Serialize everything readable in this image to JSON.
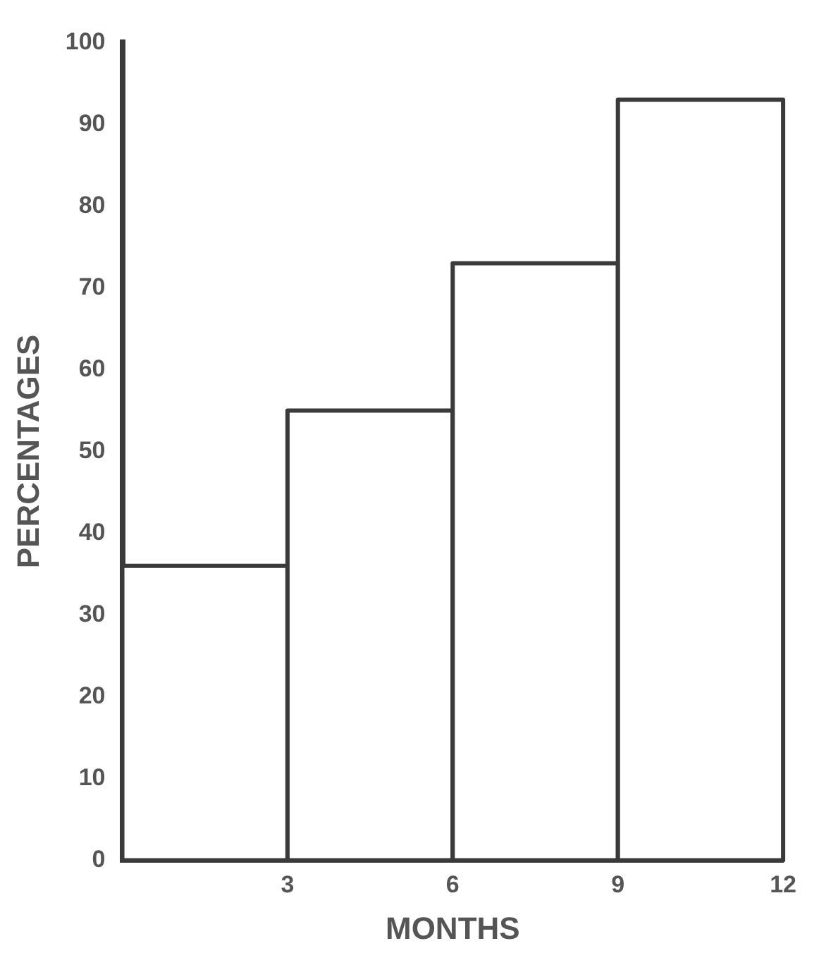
{
  "chart_data": {
    "type": "histogram",
    "xlabel": "MONTHS",
    "ylabel": "PERCENTAGES",
    "bins": [
      0,
      3,
      6,
      9,
      12
    ],
    "values": [
      36,
      55,
      73,
      93
    ],
    "color": "#3a3a3a",
    "xlim": [
      0,
      12
    ],
    "xticks": [
      3,
      6,
      9,
      12
    ],
    "ylim": [
      0,
      100
    ],
    "yticks": [
      0,
      10,
      20,
      30,
      40,
      50,
      60,
      70,
      80,
      90,
      100
    ],
    "grid": false
  }
}
